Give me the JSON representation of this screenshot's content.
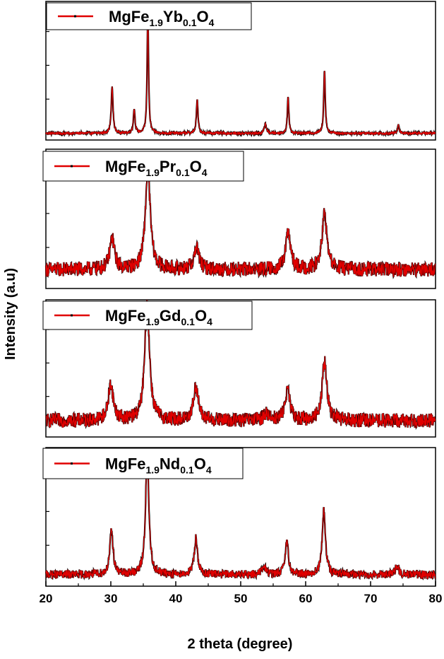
{
  "chart_data": {
    "type": "line",
    "xlabel": "2 theta (degree)",
    "ylabel": "Intensity (a.u)",
    "xlim": [
      20,
      80
    ],
    "xticks": [
      20,
      30,
      40,
      50,
      60,
      70,
      80
    ],
    "legend_placement": "top-left",
    "grid": false,
    "line_color": "#e00000",
    "marker_color": "#000000",
    "panels": [
      {
        "legend_label": {
          "base": "MgFe",
          "sub1": "1.9",
          "mid": "Yb",
          "sub2": "0.1",
          "tail": "O",
          "sub3": "4"
        },
        "baseline": 0.02,
        "noise": 0.012,
        "peaks": [
          {
            "x": 30.2,
            "h": 0.38,
            "w": 0.16
          },
          {
            "x": 33.6,
            "h": 0.2,
            "w": 0.15
          },
          {
            "x": 35.7,
            "h": 1.0,
            "w": 0.13
          },
          {
            "x": 43.3,
            "h": 0.27,
            "w": 0.15
          },
          {
            "x": 53.8,
            "h": 0.08,
            "w": 0.18
          },
          {
            "x": 57.3,
            "h": 0.29,
            "w": 0.14
          },
          {
            "x": 62.9,
            "h": 0.52,
            "w": 0.14
          },
          {
            "x": 74.3,
            "h": 0.07,
            "w": 0.15
          }
        ]
      },
      {
        "legend_label": {
          "base": "MgFe",
          "sub1": "1.9",
          "mid": "Pr",
          "sub2": "0.1",
          "tail": "O",
          "sub3": "4"
        },
        "baseline": 0.12,
        "noise": 0.06,
        "peaks": [
          {
            "x": 30.2,
            "h": 0.25,
            "w": 0.45
          },
          {
            "x": 35.7,
            "h": 0.82,
            "w": 0.45
          },
          {
            "x": 43.2,
            "h": 0.18,
            "w": 0.45
          },
          {
            "x": 57.3,
            "h": 0.3,
            "w": 0.45
          },
          {
            "x": 62.9,
            "h": 0.45,
            "w": 0.45
          }
        ]
      },
      {
        "legend_label": {
          "base": "MgFe",
          "sub1": "1.9",
          "mid": "Gd",
          "sub2": "0.1",
          "tail": "O",
          "sub3": "4"
        },
        "baseline": 0.1,
        "noise": 0.06,
        "peaks": [
          {
            "x": 30.0,
            "h": 0.3,
            "w": 0.45
          },
          {
            "x": 35.6,
            "h": 0.95,
            "w": 0.45
          },
          {
            "x": 43.1,
            "h": 0.28,
            "w": 0.45
          },
          {
            "x": 54.0,
            "h": 0.05,
            "w": 0.6
          },
          {
            "x": 57.2,
            "h": 0.25,
            "w": 0.45
          },
          {
            "x": 62.9,
            "h": 0.48,
            "w": 0.45
          }
        ]
      },
      {
        "legend_label": {
          "base": "MgFe",
          "sub1": "1.9",
          "mid": "Nd",
          "sub2": "0.1",
          "tail": "O",
          "sub3": "4"
        },
        "baseline": 0.06,
        "noise": 0.035,
        "peaks": [
          {
            "x": 30.1,
            "h": 0.36,
            "w": 0.3
          },
          {
            "x": 35.6,
            "h": 1.0,
            "w": 0.3
          },
          {
            "x": 43.1,
            "h": 0.3,
            "w": 0.3
          },
          {
            "x": 53.6,
            "h": 0.06,
            "w": 0.4
          },
          {
            "x": 57.1,
            "h": 0.26,
            "w": 0.3
          },
          {
            "x": 62.8,
            "h": 0.52,
            "w": 0.3
          },
          {
            "x": 74.1,
            "h": 0.07,
            "w": 0.3
          }
        ]
      }
    ]
  }
}
